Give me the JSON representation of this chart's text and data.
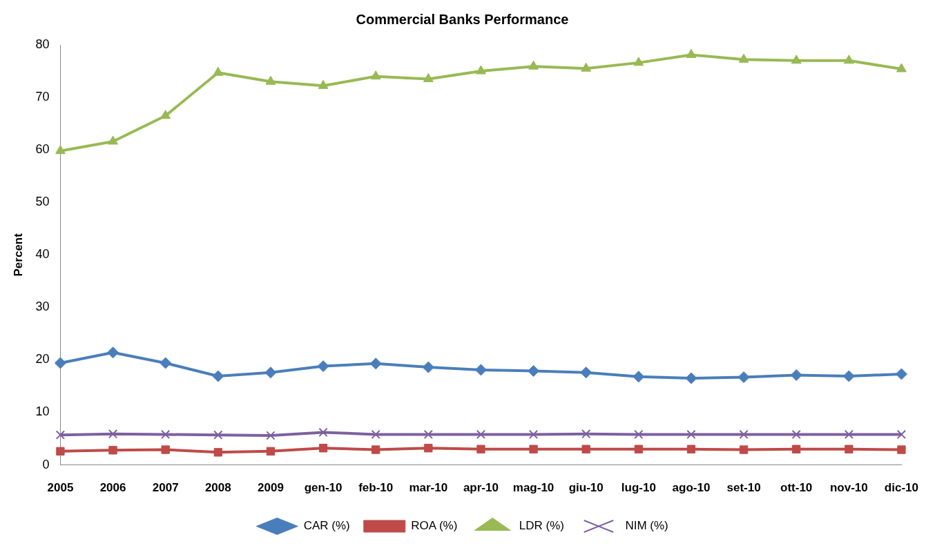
{
  "chart_data": {
    "type": "line",
    "title": "Commercial Banks Performance",
    "ylabel": "Percent",
    "categories": [
      "2005",
      "2006",
      "2007",
      "2008",
      "2009",
      "gen-10",
      "feb-10",
      "mar-10",
      "apr-10",
      "mag-10",
      "giu-10",
      "lug-10",
      "ago-10",
      "set-10",
      "ott-10",
      "nov-10",
      "dic-10"
    ],
    "series": [
      {
        "name": "CAR (%)",
        "color": "#4a7ebb",
        "marker": "diamond",
        "values": [
          19.4,
          21.4,
          19.4,
          16.9,
          17.6,
          18.8,
          19.3,
          18.6,
          18.1,
          17.9,
          17.6,
          16.8,
          16.5,
          16.7,
          17.1,
          16.9,
          17.3
        ]
      },
      {
        "name": "ROA (%)",
        "color": "#be4b48",
        "marker": "square",
        "values": [
          2.6,
          2.8,
          2.9,
          2.4,
          2.6,
          3.2,
          2.9,
          3.2,
          3.0,
          3.0,
          3.0,
          3.0,
          3.0,
          2.9,
          3.0,
          3.0,
          2.9
        ]
      },
      {
        "name": "LDR (%)",
        "color": "#98b954",
        "marker": "triangle",
        "values": [
          59.8,
          61.6,
          66.5,
          74.7,
          73.0,
          72.2,
          74.0,
          73.5,
          75.0,
          75.9,
          75.5,
          76.6,
          78.1,
          77.2,
          77.0,
          77.0,
          75.4
        ]
      },
      {
        "name": "NIM (%)",
        "color": "#7d60a0",
        "marker": "cross",
        "values": [
          5.7,
          5.9,
          5.8,
          5.7,
          5.6,
          6.2,
          5.8,
          5.8,
          5.8,
          5.8,
          5.9,
          5.8,
          5.8,
          5.8,
          5.8,
          5.8,
          5.8
        ]
      }
    ],
    "ylim": [
      0,
      80
    ],
    "yticks": [
      0,
      10,
      20,
      30,
      40,
      50,
      60,
      70,
      80
    ],
    "grid": false,
    "legend": "bottom",
    "line_style": "solid"
  }
}
